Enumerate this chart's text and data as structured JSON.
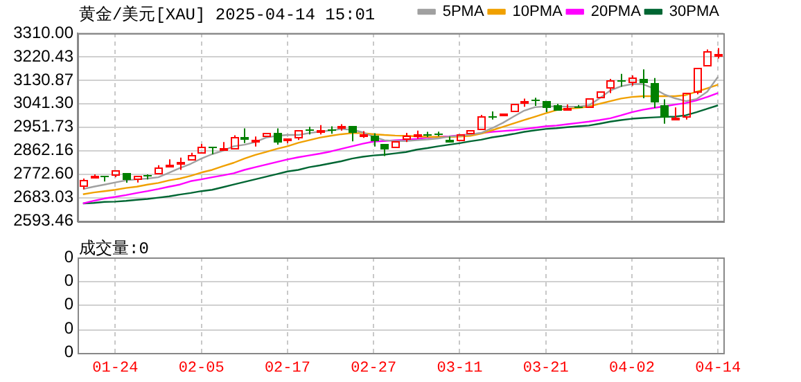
{
  "chart_data": [
    {
      "type": "candlestick",
      "title": "黄金/美元[XAU] 2025-04-14 15:01",
      "categories": [
        null,
        null,
        null,
        null,
        null,
        null,
        null,
        null,
        null,
        null,
        null,
        null,
        null,
        null,
        null,
        null,
        null,
        null,
        null,
        null,
        null,
        null,
        null,
        null,
        null,
        null,
        null,
        null,
        null,
        null,
        null,
        null,
        null,
        null,
        null,
        null,
        null,
        null,
        null,
        null,
        null,
        null,
        null,
        null,
        null,
        null,
        null,
        null,
        null,
        null,
        null,
        null,
        null,
        null,
        null,
        null,
        null,
        null,
        null,
        null
      ],
      "ohlc": [
        [
          2725,
          2756,
          2715,
          2753
        ],
        [
          2758,
          2772,
          2753,
          2764
        ],
        [
          2766,
          2769,
          2745,
          2763
        ],
        [
          2766,
          2789,
          2761,
          2785
        ],
        [
          2777,
          2782,
          2740,
          2750
        ],
        [
          2750,
          2771,
          2741,
          2768
        ],
        [
          2769,
          2772,
          2753,
          2766
        ],
        [
          2772,
          2807,
          2769,
          2800
        ],
        [
          2802,
          2829,
          2800,
          2807
        ],
        [
          2807,
          2836,
          2789,
          2820
        ],
        [
          2823,
          2854,
          2820,
          2847
        ],
        [
          2851,
          2888,
          2846,
          2875
        ],
        [
          2877,
          2882,
          2849,
          2873
        ],
        [
          2869,
          2895,
          2865,
          2873
        ],
        [
          2869,
          2921,
          2867,
          2913
        ],
        [
          2913,
          2947,
          2891,
          2904
        ],
        [
          2900,
          2916,
          2878,
          2906
        ],
        [
          2913,
          2935,
          2911,
          2932
        ],
        [
          2932,
          2947,
          2885,
          2891
        ],
        [
          2896,
          2911,
          2891,
          2908
        ],
        [
          2908,
          2943,
          2903,
          2940
        ],
        [
          2942,
          2953,
          2924,
          2939
        ],
        [
          2939,
          2960,
          2924,
          2942
        ],
        [
          2942,
          2955,
          2927,
          2939
        ],
        [
          2945,
          2963,
          2939,
          2957
        ],
        [
          2955,
          2958,
          2898,
          2930
        ],
        [
          2922,
          2937,
          2911,
          2926
        ],
        [
          2919,
          2929,
          2878,
          2896
        ],
        [
          2886,
          2891,
          2842,
          2865
        ],
        [
          2872,
          2903,
          2870,
          2898
        ],
        [
          2904,
          2930,
          2895,
          2922
        ],
        [
          2922,
          2939,
          2908,
          2926
        ],
        [
          2926,
          2934,
          2914,
          2922
        ],
        [
          2927,
          2935,
          2917,
          2924
        ],
        [
          2906,
          2916,
          2891,
          2895
        ],
        [
          2898,
          2930,
          2895,
          2926
        ],
        [
          2926,
          2943,
          2922,
          2939
        ],
        [
          2940,
          2999,
          2937,
          2996
        ],
        [
          2992,
          3012,
          2981,
          2987
        ],
        [
          2994,
          3009,
          2992,
          3005
        ],
        [
          3009,
          3046,
          3005,
          3040
        ],
        [
          3048,
          3061,
          3030,
          3053
        ],
        [
          3056,
          3064,
          3033,
          3053
        ],
        [
          3051,
          3053,
          3009,
          3027
        ],
        [
          3035,
          3041,
          3010,
          3017
        ],
        [
          3022,
          3038,
          3017,
          3027
        ],
        [
          3030,
          3036,
          3020,
          3027
        ],
        [
          3027,
          3064,
          3022,
          3061
        ],
        [
          3064,
          3092,
          3062,
          3090
        ],
        [
          3098,
          3136,
          3082,
          3129
        ],
        [
          3128,
          3155,
          3106,
          3123
        ],
        [
          3119,
          3149,
          3110,
          3139
        ],
        [
          3134,
          3172,
          3062,
          3119
        ],
        [
          3118,
          3139,
          3025,
          3046
        ],
        [
          3036,
          3058,
          2965,
          2989
        ],
        [
          2986,
          3027,
          2981,
          2987
        ],
        [
          2986,
          3084,
          2981,
          3084
        ],
        [
          3082,
          3181,
          3077,
          3178
        ],
        [
          3185,
          3248,
          3180,
          3243
        ],
        [
          3224,
          3253,
          3214,
          3229
        ]
      ],
      "series": [
        {
          "name": "5PMA",
          "type": "line",
          "color": "#a0a0a0",
          "values": [
            2716,
            2725,
            2733,
            2741,
            2749,
            2753,
            2756,
            2761,
            2778,
            2796,
            2812,
            2832,
            2849,
            2862,
            2879,
            2885,
            2895,
            2912,
            2919,
            2922,
            2922,
            2929,
            2935,
            2939,
            2945,
            2942,
            2932,
            2915,
            2902,
            2899,
            2899,
            2902,
            2905,
            2909,
            2916,
            2919,
            2924,
            2930,
            2948,
            2968,
            2992,
            3015,
            3028,
            3031,
            3031,
            3030,
            3030,
            3035,
            3062,
            3092,
            3108,
            3116,
            3116,
            3100,
            3077,
            3062,
            3051,
            3059,
            3087,
            3144
          ]
        },
        {
          "name": "10PMA",
          "type": "line",
          "color": "#f0a000",
          "values": [
            2696,
            2703,
            2708,
            2713,
            2720,
            2725,
            2733,
            2739,
            2749,
            2756,
            2766,
            2779,
            2789,
            2803,
            2816,
            2832,
            2846,
            2857,
            2869,
            2879,
            2892,
            2902,
            2912,
            2919,
            2925,
            2929,
            2929,
            2925,
            2922,
            2920,
            2919,
            2917,
            2915,
            2915,
            2914,
            2916,
            2919,
            2927,
            2940,
            2953,
            2966,
            2979,
            2992,
            3005,
            3017,
            3022,
            3025,
            3030,
            3041,
            3051,
            3061,
            3067,
            3070,
            3070,
            3070,
            3070,
            3074,
            3087,
            3100,
            3114
          ]
        },
        {
          "name": "20PMA",
          "type": "line",
          "color": "#ff00ff",
          "values": [
            2661,
            2671,
            2680,
            2686,
            2693,
            2701,
            2708,
            2716,
            2725,
            2733,
            2746,
            2753,
            2761,
            2768,
            2776,
            2789,
            2799,
            2809,
            2819,
            2829,
            2837,
            2844,
            2851,
            2859,
            2869,
            2879,
            2889,
            2897,
            2899,
            2902,
            2904,
            2907,
            2912,
            2915,
            2917,
            2921,
            2924,
            2929,
            2934,
            2937,
            2940,
            2945,
            2950,
            2955,
            2958,
            2963,
            2968,
            2973,
            2979,
            2986,
            2997,
            3009,
            3018,
            3025,
            3031,
            3038,
            3044,
            3054,
            3067,
            3082
          ]
        },
        {
          "name": "30PMA",
          "type": "line",
          "color": "#006633",
          "values": [
            2661,
            2663,
            2667,
            2668,
            2671,
            2675,
            2678,
            2683,
            2688,
            2695,
            2701,
            2708,
            2713,
            2723,
            2733,
            2743,
            2753,
            2763,
            2773,
            2783,
            2789,
            2799,
            2806,
            2814,
            2822,
            2832,
            2839,
            2844,
            2847,
            2852,
            2857,
            2866,
            2872,
            2879,
            2885,
            2891,
            2898,
            2904,
            2913,
            2919,
            2926,
            2934,
            2940,
            2945,
            2948,
            2952,
            2955,
            2958,
            2965,
            2973,
            2979,
            2984,
            2987,
            2989,
            2991,
            2992,
            2997,
            3009,
            3022,
            3035
          ]
        }
      ],
      "ylim": [
        2593.46,
        3310
      ],
      "yticks": [
        2593.46,
        2683.03,
        {
          "value": 2772.6,
          "label": "2772.60"
        },
        2862.16,
        2951.73,
        {
          "value": 3041.3,
          "label": "3041.30"
        },
        3130.87,
        3220.43,
        {
          "value": 3310,
          "label": "3310.00"
        }
      ],
      "grid": true,
      "legend": "top right",
      "tick_labels": "y"
    },
    {
      "type": "other",
      "title": "成交量:0",
      "categories": [
        null,
        null,
        null,
        "01-24",
        null,
        null,
        null,
        null,
        null,
        null,
        null,
        "02-05",
        null,
        null,
        null,
        null,
        null,
        null,
        null,
        "02-17",
        null,
        null,
        null,
        null,
        null,
        null,
        null,
        "02-27",
        null,
        null,
        null,
        null,
        null,
        null,
        null,
        "03-11",
        null,
        null,
        null,
        null,
        null,
        null,
        null,
        "03-21",
        null,
        null,
        null,
        null,
        null,
        null,
        null,
        "04-02",
        null,
        null,
        null,
        null,
        null,
        null,
        null,
        "04-14"
      ],
      "annotations": [
        "0",
        "0",
        "0",
        "0",
        "0"
      ]
    }
  ]
}
